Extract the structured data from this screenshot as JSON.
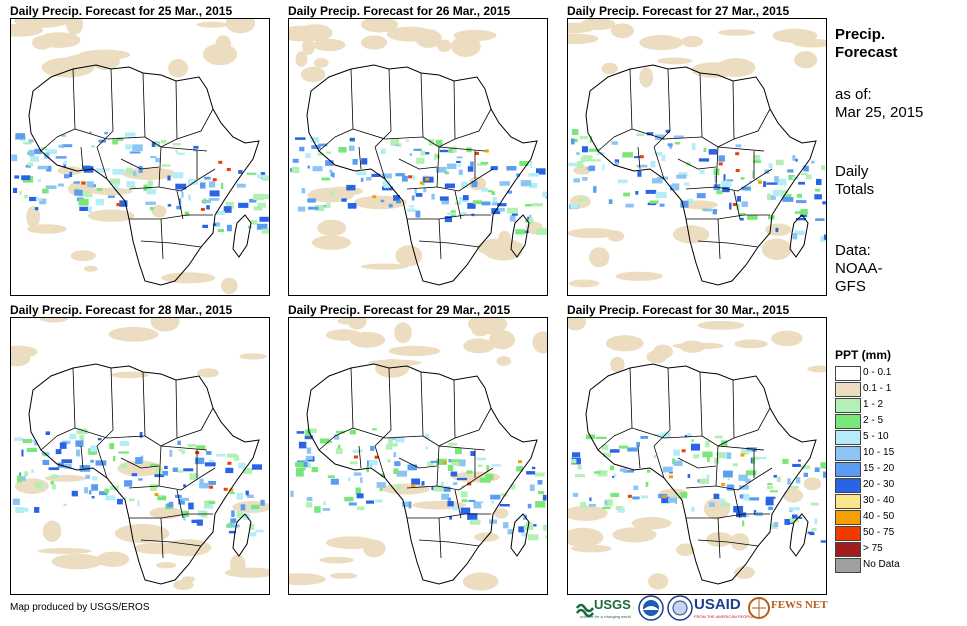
{
  "panels": [
    {
      "title": "Daily Precip. Forecast for 25 Mar., 2015"
    },
    {
      "title": "Daily Precip. Forecast for 26 Mar., 2015"
    },
    {
      "title": "Daily Precip. Forecast for 27 Mar., 2015"
    },
    {
      "title": "Daily Precip. Forecast for 28 Mar., 2015"
    },
    {
      "title": "Daily Precip. Forecast for 29 Mar., 2015"
    },
    {
      "title": "Daily Precip. Forecast for 30 Mar., 2015"
    }
  ],
  "sidebar": {
    "title_line1": "Precip.",
    "title_line2": "Forecast",
    "asof_line1": "as of:",
    "asof_line2": "Mar 25, 2015",
    "totals_line1": "Daily",
    "totals_line2": "Totals",
    "data_line1": "Data:",
    "data_line2": "NOAA-",
    "data_line3": "GFS"
  },
  "legend": {
    "title": "PPT (mm)",
    "items": [
      {
        "label": "0 - 0.1",
        "color": "#ffffff"
      },
      {
        "label": "0.1 - 1",
        "color": "#ecdcc0"
      },
      {
        "label": "1 - 2",
        "color": "#b4f0b4"
      },
      {
        "label": "2 - 5",
        "color": "#78e678"
      },
      {
        "label": "5 - 10",
        "color": "#b4ecf8"
      },
      {
        "label": "10 - 15",
        "color": "#8cc4f4"
      },
      {
        "label": "15 - 20",
        "color": "#5a9cf0"
      },
      {
        "label": "20 - 30",
        "color": "#2a64e6"
      },
      {
        "label": "30 - 40",
        "color": "#fae68c"
      },
      {
        "label": "40 - 50",
        "color": "#f5a000"
      },
      {
        "label": "50 - 75",
        "color": "#f03c00"
      },
      {
        "label": "> 75",
        "color": "#a01e1e"
      },
      {
        "label": "No Data",
        "color": "#a0a0a0"
      }
    ]
  },
  "credit": "Map produced by USGS/EROS",
  "logos": {
    "usgs": "USGS",
    "usgs_tagline": "science for a changing world",
    "usaid": "USAID",
    "usaid_tagline": "FROM THE AMERICAN PEOPLE",
    "fews": "FEWS NET"
  }
}
